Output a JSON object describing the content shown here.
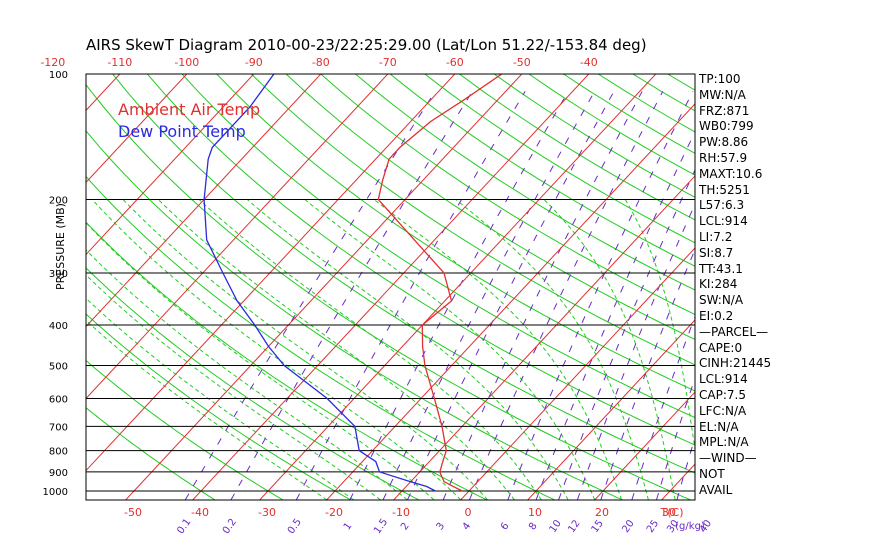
{
  "chart_data": {
    "type": "line",
    "title": "AIRS SkewT Diagram 2010-00-23/22:25:29.00 (Lat/Lon 51.22/-153.84 deg)",
    "ylabel": "PRESSURE (MB)",
    "y_scale": "log",
    "ylim": [
      1000,
      100
    ],
    "pressure_ticks": [
      100,
      200,
      300,
      400,
      500,
      600,
      700,
      800,
      900,
      1000
    ],
    "bottom_temp_ticks": [
      "-50",
      "-40",
      "-30",
      "-20",
      "-10",
      "0",
      "10",
      "20",
      "30"
    ],
    "top_temp_ticks": [
      "-120",
      "-110",
      "-100",
      "-90",
      "-80",
      "-70",
      "-60",
      "-50",
      "-40"
    ],
    "bottom_axis_unit": "T(C)",
    "mixing_ratio_labels": [
      "0.1",
      "0.2",
      "0.5",
      "1",
      "1.5",
      "2",
      "3",
      "4",
      "6",
      "8",
      "10",
      "12",
      "15",
      "20",
      "25",
      "30",
      "40"
    ],
    "mixing_ratio_unit": "(g/kg)",
    "legend": [
      "Ambient Air Temp",
      "Dew Point Temp"
    ],
    "series": [
      {
        "name": "Ambient Air Temp",
        "color": "#e03030",
        "points": [
          [
            1000,
            -1
          ],
          [
            975,
            -3
          ],
          [
            950,
            -5
          ],
          [
            925,
            -6
          ],
          [
            900,
            -7
          ],
          [
            850,
            -8
          ],
          [
            800,
            -9
          ],
          [
            700,
            -13
          ],
          [
            600,
            -18
          ],
          [
            500,
            -24
          ],
          [
            450,
            -27
          ],
          [
            400,
            -30
          ],
          [
            350,
            -29
          ],
          [
            300,
            -34
          ],
          [
            250,
            -43
          ],
          [
            200,
            -54
          ],
          [
            180,
            -56
          ],
          [
            160,
            -58
          ],
          [
            150,
            -58
          ],
          [
            130,
            -57
          ],
          [
            115,
            -55
          ],
          [
            100,
            -53
          ]
        ]
      },
      {
        "name": "Dew Point Temp",
        "color": "#2a2ae0",
        "points": [
          [
            1000,
            -5
          ],
          [
            975,
            -7
          ],
          [
            950,
            -10
          ],
          [
            900,
            -16
          ],
          [
            850,
            -18
          ],
          [
            800,
            -22
          ],
          [
            700,
            -26
          ],
          [
            600,
            -34
          ],
          [
            500,
            -45
          ],
          [
            450,
            -50
          ],
          [
            400,
            -55
          ],
          [
            350,
            -61
          ],
          [
            300,
            -67
          ],
          [
            250,
            -74
          ],
          [
            200,
            -80
          ],
          [
            160,
            -85
          ],
          [
            150,
            -86
          ],
          [
            120,
            -86
          ],
          [
            100,
            -87
          ]
        ]
      }
    ],
    "grid": true
  },
  "stats": [
    "TP:100",
    "MW:N/A",
    "FRZ:871",
    "WB0:799",
    "PW:8.86",
    "RH:57.9",
    "MAXT:10.6",
    "TH:5251",
    "L57:6.3",
    "LCL:914",
    "LI:7.2",
    "SI:8.7",
    "TT:43.1",
    "KI:284",
    "SW:N/A",
    "EI:0.2",
    "—PARCEL—",
    "CAPE:0",
    "CINH:21445",
    "LCL:914",
    "CAP:7.5",
    "LFC:N/A",
    "EL:N/A",
    "MPL:N/A",
    "—WIND—",
    " NOT",
    " AVAIL"
  ]
}
